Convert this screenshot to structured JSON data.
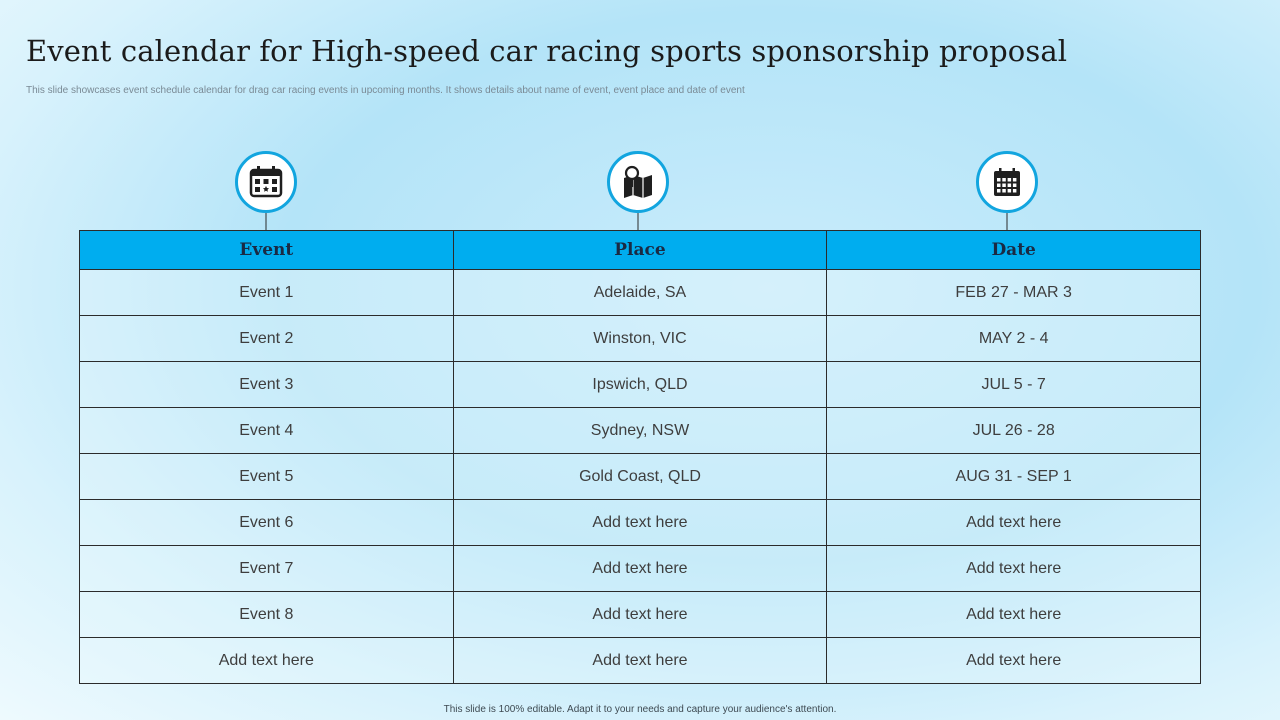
{
  "slide": {
    "title": "Event calendar for High-speed car racing sports sponsorship proposal",
    "subtitle": "This slide showcases event schedule calendar for drag car racing events in upcoming months. It shows details about name of event, event place and date of event",
    "footer": "This slide is 100% editable. Adapt it to your needs and capture your audience's attention."
  },
  "icons": [
    "calendar-icon",
    "map-pin-icon",
    "calendar-grid-icon"
  ],
  "colors": {
    "header_bg": "#00adef",
    "icon_ring": "#12a5df",
    "title": "#1b1b1b"
  },
  "table": {
    "headers": [
      "Event",
      "Place",
      "Date"
    ],
    "rows": [
      [
        "Event 1",
        "Adelaide, SA",
        "FEB 27 - MAR 3"
      ],
      [
        "Event 2",
        "Winston, VIC",
        "MAY 2 - 4"
      ],
      [
        "Event 3",
        "Ipswich, QLD",
        "JUL 5 - 7"
      ],
      [
        "Event 4",
        "Sydney, NSW",
        "JUL 26 - 28"
      ],
      [
        "Event 5",
        "Gold Coast, QLD",
        "AUG 31 - SEP 1"
      ],
      [
        "Event 6",
        "Add text here",
        "Add text here"
      ],
      [
        "Event 7",
        "Add text here",
        "Add text here"
      ],
      [
        "Event 8",
        "Add text here",
        "Add text here"
      ],
      [
        "Add text here",
        "Add text here",
        "Add text here"
      ]
    ]
  }
}
